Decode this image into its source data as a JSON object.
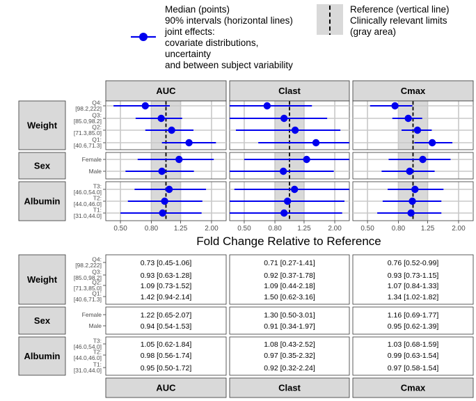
{
  "legend": {
    "median_label": "Median (points)",
    "interval_label": "90% intervals (horizontal lines)",
    "effects_lines": [
      "joint effects:",
      "covariate distributions,",
      "uncertainty",
      "and between subject variability"
    ],
    "reference_label": "Reference (vertical line)",
    "limits_lines": [
      "Clinically relevant limits",
      "(gray area)"
    ]
  },
  "colors": {
    "point": "#0000ee",
    "band": "#d9d9d9",
    "strip": "#d9d9d9",
    "grid": "#c8c8c8"
  },
  "chart_data": {
    "type": "forest",
    "xlabel": "Fold Change Relative to Reference",
    "x_scale": "log",
    "x_ticks": [
      0.5,
      0.8,
      1.25,
      2.0
    ],
    "x_tick_labels": [
      "0.50",
      "0.80",
      "1.25",
      "2.00"
    ],
    "xlim": [
      0.4,
      2.5
    ],
    "reference": 1.0,
    "limits": [
      0.8,
      1.25
    ],
    "panels": [
      "AUC",
      "Clast",
      "Cmax"
    ],
    "groups": [
      {
        "name": "Weight",
        "levels": [
          {
            "label": "Q4:",
            "sub": "[98.2,222]"
          },
          {
            "label": "Q3:",
            "sub": "[85.0,98.2]"
          },
          {
            "label": "Q2:",
            "sub": "[71.3,85.0]"
          },
          {
            "label": "Q1:",
            "sub": "[40.6,71.3]"
          }
        ]
      },
      {
        "name": "Sex",
        "levels": [
          {
            "label": "Female",
            "sub": ""
          },
          {
            "label": "Male",
            "sub": ""
          }
        ]
      },
      {
        "name": "Albumin",
        "levels": [
          {
            "label": "T3:",
            "sub": "[46.0,54.0]"
          },
          {
            "label": "T2:",
            "sub": "[44.0,46.0]"
          },
          {
            "label": "T1:",
            "sub": "[31.0,44.0]"
          }
        ]
      }
    ],
    "values": {
      "AUC": [
        [
          [
            0.73,
            0.45,
            1.06
          ],
          [
            0.93,
            0.63,
            1.28
          ],
          [
            1.09,
            0.73,
            1.52
          ],
          [
            1.42,
            0.94,
            2.14
          ]
        ],
        [
          [
            1.22,
            0.65,
            2.07
          ],
          [
            0.94,
            0.54,
            1.53
          ]
        ],
        [
          [
            1.05,
            0.62,
            1.84
          ],
          [
            0.98,
            0.56,
            1.74
          ],
          [
            0.95,
            0.5,
            1.72
          ]
        ]
      ],
      "Clast": [
        [
          [
            0.71,
            0.27,
            1.41
          ],
          [
            0.92,
            0.37,
            1.78
          ],
          [
            1.09,
            0.44,
            2.18
          ],
          [
            1.5,
            0.62,
            3.16
          ]
        ],
        [
          [
            1.3,
            0.5,
            3.01
          ],
          [
            0.91,
            0.34,
            1.97
          ]
        ],
        [
          [
            1.08,
            0.43,
            2.52
          ],
          [
            0.97,
            0.35,
            2.32
          ],
          [
            0.92,
            0.32,
            2.24
          ]
        ]
      ],
      "Cmax": [
        [
          [
            0.76,
            0.52,
            0.99
          ],
          [
            0.93,
            0.73,
            1.15
          ],
          [
            1.07,
            0.84,
            1.33
          ],
          [
            1.34,
            1.02,
            1.82
          ]
        ],
        [
          [
            1.16,
            0.69,
            1.77
          ],
          [
            0.95,
            0.62,
            1.39
          ]
        ],
        [
          [
            1.03,
            0.68,
            1.59
          ],
          [
            0.99,
            0.63,
            1.54
          ],
          [
            0.97,
            0.58,
            1.54
          ]
        ]
      ]
    },
    "table": {
      "AUC": [
        [
          "0.73 [0.45-1.06]",
          "0.93 [0.63-1.28]",
          "1.09 [0.73-1.52]",
          "1.42 [0.94-2.14]"
        ],
        [
          "1.22 [0.65-2.07]",
          "0.94 [0.54-1.53]"
        ],
        [
          "1.05 [0.62-1.84]",
          "0.98 [0.56-1.74]",
          "0.95 [0.50-1.72]"
        ]
      ],
      "Clast": [
        [
          "0.71 [0.27-1.41]",
          "0.92 [0.37-1.78]",
          "1.09 [0.44-2.18]",
          "1.50 [0.62-3.16]"
        ],
        [
          "1.30 [0.50-3.01]",
          "0.91 [0.34-1.97]"
        ],
        [
          "1.08 [0.43-2.52]",
          "0.97 [0.35-2.32]",
          "0.92 [0.32-2.24]"
        ]
      ],
      "Cmax": [
        [
          "0.76 [0.52-0.99]",
          "0.93 [0.73-1.15]",
          "1.07 [0.84-1.33]",
          "1.34 [1.02-1.82]"
        ],
        [
          "1.16 [0.69-1.77]",
          "0.95 [0.62-1.39]"
        ],
        [
          "1.03 [0.68-1.59]",
          "0.99 [0.63-1.54]",
          "0.97 [0.58-1.54]"
        ]
      ]
    }
  }
}
